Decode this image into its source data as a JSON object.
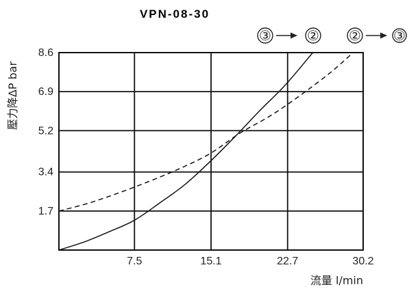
{
  "chart_data": {
    "type": "line",
    "title": "VPN-08-30",
    "xlabel": "流量 l/min",
    "ylabel": "壓力降ΔP bar",
    "x_ticks": [
      "7.5",
      "15.1",
      "22.7",
      "30.2"
    ],
    "y_ticks": [
      "1.7",
      "3.4",
      "5.2",
      "6.9",
      "8.6"
    ],
    "xlim": [
      0,
      30.2
    ],
    "ylim": [
      0,
      8.6
    ],
    "grid": true,
    "series": [
      {
        "name": "③→②",
        "style": "solid",
        "x": [
          0,
          2.5,
          5,
          7.5,
          10,
          12.5,
          15,
          17.5,
          20,
          22.5,
          25.2
        ],
        "y": [
          0,
          0.35,
          0.8,
          1.3,
          2.05,
          2.85,
          3.85,
          4.95,
          6.1,
          7.2,
          8.6
        ]
      },
      {
        "name": "②→③",
        "style": "dashed",
        "x": [
          0,
          3,
          6,
          9,
          12,
          15,
          18,
          21,
          24,
          27,
          29.2
        ],
        "y": [
          1.7,
          2.05,
          2.5,
          3.0,
          3.55,
          4.2,
          5.1,
          5.85,
          6.75,
          7.75,
          8.6
        ]
      }
    ],
    "legend": [
      {
        "from": "③",
        "to": "②"
      },
      {
        "from": "②",
        "to": "③"
      }
    ]
  }
}
